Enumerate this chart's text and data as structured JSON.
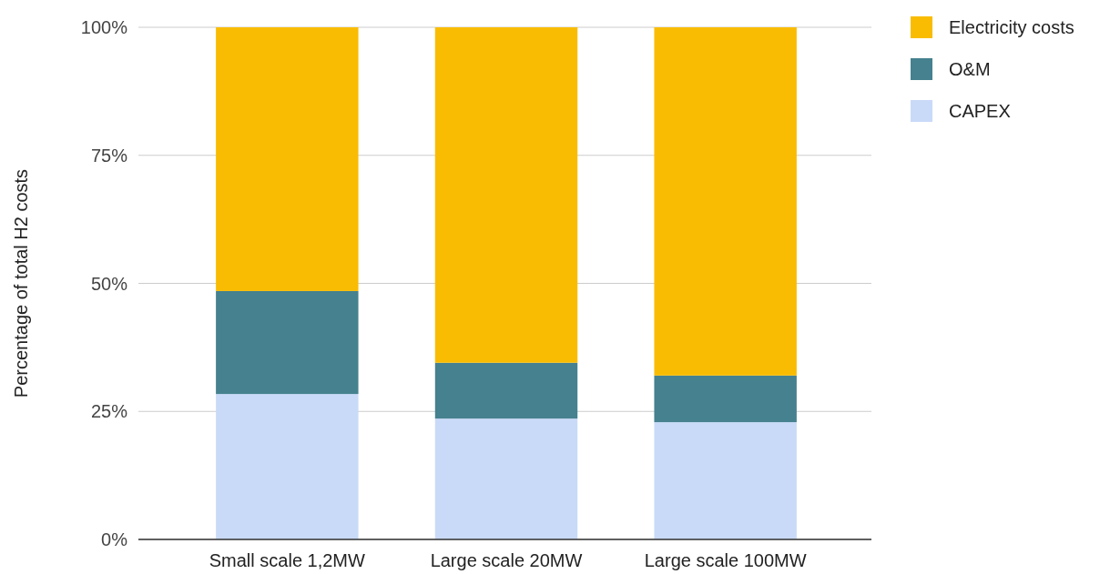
{
  "chart_data": {
    "type": "bar",
    "stacked": true,
    "ylabel": "Percentage of total H2 costs",
    "categories": [
      "Small scale 1,2MW",
      "Large scale 20MW",
      "Large scale 100MW"
    ],
    "series": [
      {
        "name": "CAPEX",
        "color": "#c9daf8",
        "values": [
          28.4,
          23.6,
          22.9
        ]
      },
      {
        "name": "O&M",
        "color": "#45818e",
        "values": [
          20.1,
          10.9,
          9.1
        ]
      },
      {
        "name": "Electricity costs",
        "color": "#f9bc02",
        "values": [
          51.5,
          65.5,
          68.0
        ]
      }
    ],
    "ylim": [
      0,
      100
    ],
    "yticks": [
      {
        "value": 0,
        "label": "0%"
      },
      {
        "value": 25,
        "label": "25%"
      },
      {
        "value": 50,
        "label": "50%"
      },
      {
        "value": 75,
        "label": "75%"
      },
      {
        "value": 100,
        "label": "100%"
      }
    ],
    "grid": "y",
    "legend": "top right"
  }
}
